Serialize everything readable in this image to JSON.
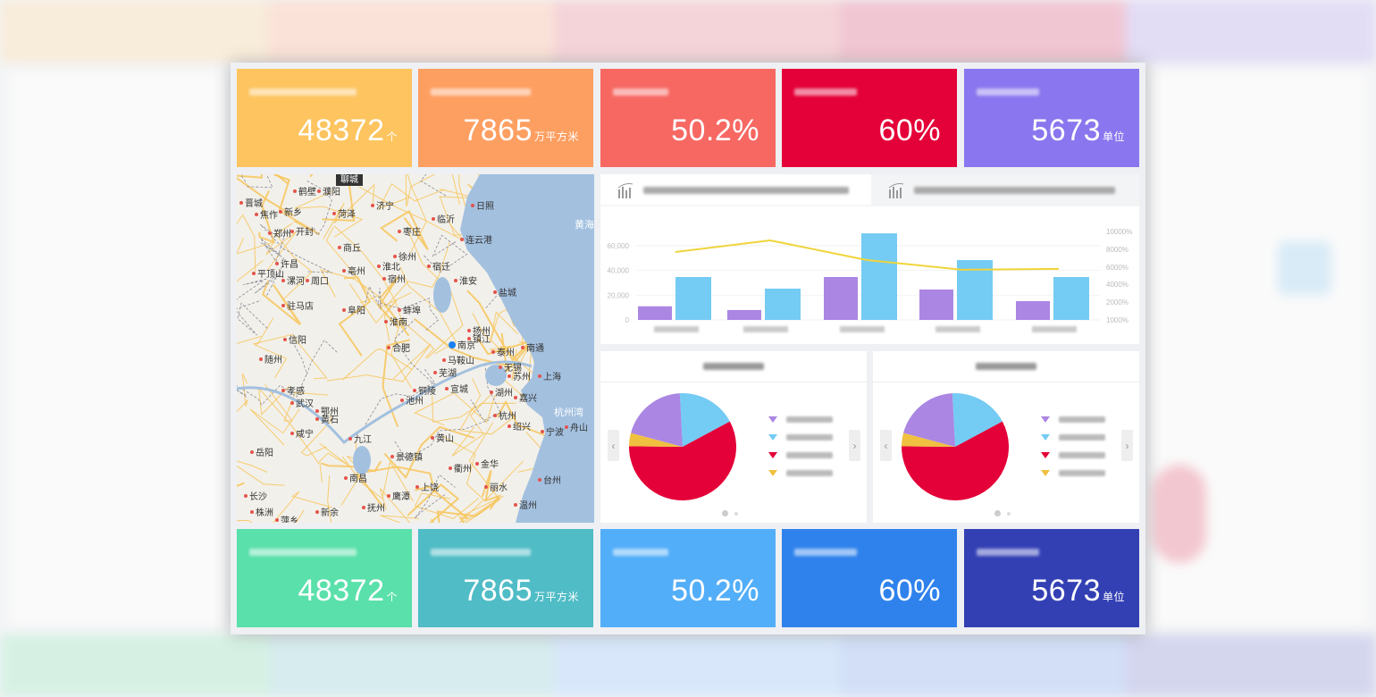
{
  "kpi_top": [
    {
      "value": "48372",
      "unit": "个",
      "color": "#fdc45f"
    },
    {
      "value": "7865",
      "unit": "万平方米",
      "color": "#fe9f62"
    },
    {
      "value": "50.2%",
      "unit": "",
      "color": "#f76863"
    },
    {
      "value": "60%",
      "unit": "",
      "color": "#e40038"
    },
    {
      "value": "5673",
      "unit": "单位",
      "color": "#8a76ee"
    }
  ],
  "kpi_bottom": [
    {
      "value": "48372",
      "unit": "个",
      "color": "#5ae0aa"
    },
    {
      "value": "7865",
      "unit": "万平方米",
      "color": "#4fbcc6"
    },
    {
      "value": "50.2%",
      "unit": "",
      "color": "#52aef9"
    },
    {
      "value": "60%",
      "unit": "",
      "color": "#2f82ec"
    },
    {
      "value": "5673",
      "unit": "单位",
      "color": "#3340b4"
    }
  ],
  "map": {
    "tag": "聊城",
    "sea_labels": [
      "黄海",
      "杭州湾"
    ],
    "cities": [
      "鹤壁",
      "濮阳",
      "晋城",
      "焦作",
      "新乡",
      "菏泽",
      "济宁",
      "日照",
      "临沂",
      "枣庄",
      "郑州",
      "开封",
      "连云港",
      "商丘",
      "徐州",
      "许昌",
      "宿迁",
      "淮北",
      "亳州",
      "平顶山",
      "漯河",
      "周口",
      "宿州",
      "淮安",
      "盐城",
      "驻马店",
      "阜阳",
      "蚌埠",
      "淮南",
      "信阳",
      "合肥",
      "南京",
      "扬州",
      "镇江",
      "南通",
      "随州",
      "马鞍山",
      "泰州",
      "芜湖",
      "无锡",
      "苏州",
      "上海",
      "孝感",
      "铜陵",
      "宣城",
      "湖州",
      "嘉兴",
      "武汉",
      "池州",
      "鄂州",
      "黄石",
      "杭州",
      "绍兴",
      "宁波",
      "舟山",
      "咸宁",
      "九江",
      "黄山",
      "岳阳",
      "景德镇",
      "金华",
      "衢州",
      "南昌",
      "台州",
      "丽水",
      "上饶",
      "长沙",
      "鹰潭",
      "温州",
      "抚州",
      "株洲",
      "新余",
      "萍乡"
    ],
    "marker_city": "南京",
    "colors": {
      "land": "#f2f0ea",
      "sea": "#a3c0df",
      "road": "#f7c65c"
    }
  },
  "chart_data": {
    "type": "bar",
    "categories": [
      "",
      "",
      "",
      "",
      ""
    ],
    "left_axis": {
      "ticks": [
        "0",
        "20,000",
        "40,000",
        "60,000"
      ],
      "ylim": [
        0,
        70000
      ]
    },
    "right_axis": {
      "ticks": [
        "1000%",
        "2000%",
        "4000%",
        "6000%",
        "8000%",
        "10000%"
      ]
    },
    "series": [
      {
        "type": "bar",
        "color": "#ab86e3",
        "values": [
          11000,
          8000,
          34700,
          24600,
          15200
        ]
      },
      {
        "type": "bar",
        "color": "#74cbf3",
        "values": [
          34700,
          25300,
          70000,
          48400,
          34700
        ]
      },
      {
        "type": "line",
        "axis": "right",
        "color": "#f0d43a",
        "values": [
          7700,
          9000,
          6800,
          5700,
          5800
        ]
      }
    ],
    "grid": true
  },
  "pies": [
    {
      "slices": [
        {
          "value": 18,
          "color": "#74cbf3"
        },
        {
          "value": 58,
          "color": "#e40038"
        },
        {
          "value": 4,
          "color": "#f0c040"
        },
        {
          "value": 20,
          "color": "#ab86e3"
        }
      ],
      "page": 1,
      "pages": 2
    },
    {
      "slices": [
        {
          "value": 18,
          "color": "#74cbf3"
        },
        {
          "value": 58,
          "color": "#e40038"
        },
        {
          "value": 4,
          "color": "#f0c040"
        },
        {
          "value": 20,
          "color": "#ab86e3"
        }
      ],
      "page": 1,
      "pages": 2
    }
  ],
  "icons": {
    "chart_tab": "bar-chart-icon",
    "prev": "chevron-left-icon",
    "next": "chevron-right-icon",
    "prev_glyph": "‹",
    "next_glyph": "›"
  }
}
